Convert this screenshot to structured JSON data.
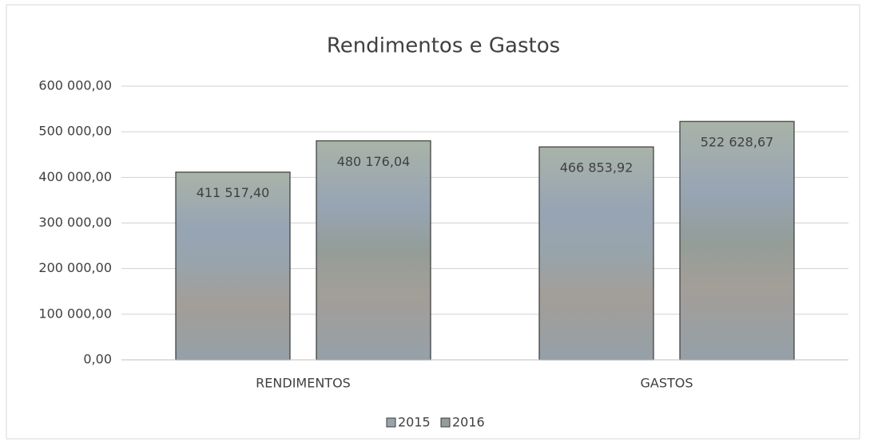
{
  "chart_data": {
    "type": "bar",
    "title": "Rendimentos e Gastos",
    "categories": [
      "RENDIMENTOS",
      "GASTOS"
    ],
    "series": [
      {
        "name": "2015",
        "color": "#98a4ab",
        "values": [
          411517.4,
          466853.92
        ],
        "value_labels": [
          "411 517,40",
          "466 853,92"
        ]
      },
      {
        "name": "2016",
        "color": "#949d98",
        "values": [
          480176.04,
          522628.67
        ],
        "value_labels": [
          "480 176,04",
          "522 628,67"
        ]
      }
    ],
    "ylim": [
      0,
      600000
    ],
    "yticks": [
      {
        "value": 0,
        "label": "0,00"
      },
      {
        "value": 100000,
        "label": "100 000,00"
      },
      {
        "value": 200000,
        "label": "200 000,00"
      },
      {
        "value": 300000,
        "label": "300 000,00"
      },
      {
        "value": 400000,
        "label": "400 000,00"
      },
      {
        "value": 500000,
        "label": "500 000,00"
      },
      {
        "value": 600000,
        "label": "600 000,00"
      }
    ],
    "grid": true,
    "legend": "bottom"
  }
}
